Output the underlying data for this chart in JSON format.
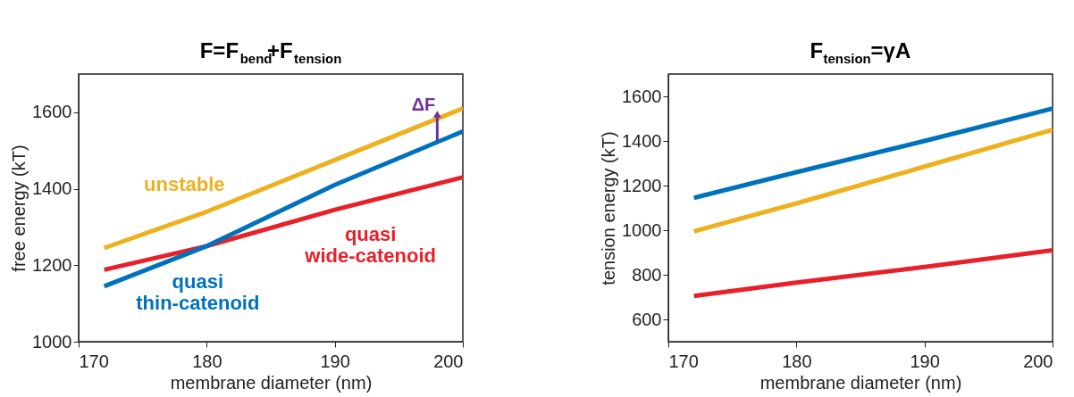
{
  "chart_data": [
    {
      "type": "line",
      "title": "F=F$_{bend}$+F$_{tension}$",
      "xlabel": "membrane diameter (nm)",
      "ylabel": "free energy (kT)",
      "xlim": [
        170,
        200
      ],
      "xticks": [
        170,
        180,
        190,
        200
      ],
      "ylim": [
        1000,
        1700
      ],
      "yticks": [
        1000,
        1200,
        1400,
        1600
      ],
      "grid": false,
      "legend": false,
      "x": [
        172,
        180,
        190,
        200
      ],
      "series": [
        {
          "name": "unstable",
          "color": "#edb120",
          "values": [
            1245,
            1340,
            1475,
            1610
          ]
        },
        {
          "name": "quasi wide-catenoid",
          "color": "#e8202a",
          "values": [
            1188,
            1250,
            1345,
            1430
          ]
        },
        {
          "name": "quasi thin-catenoid",
          "color": "#0072bd",
          "values": [
            1145,
            1250,
            1410,
            1550
          ]
        }
      ],
      "annotations": [
        {
          "text": "ΔF",
          "x": 198,
          "y": 1595
        }
      ]
    },
    {
      "type": "line",
      "title": "F$_{tension}$=γA",
      "xlabel": "membrane diameter (nm)",
      "ylabel": "tension energy (kT)",
      "xlim": [
        170,
        200
      ],
      "xticks": [
        170,
        180,
        190,
        200
      ],
      "ylim": [
        500,
        1700
      ],
      "yticks": [
        600,
        800,
        1000,
        1200,
        1400,
        1600
      ],
      "grid": false,
      "legend": false,
      "x": [
        172,
        180,
        190,
        200
      ],
      "series": [
        {
          "color": "#0072bd",
          "values": [
            1145,
            1260,
            1400,
            1545
          ]
        },
        {
          "color": "#edb120",
          "values": [
            995,
            1120,
            1285,
            1450
          ]
        },
        {
          "color": "#e8202a",
          "values": [
            705,
            765,
            835,
            910
          ]
        }
      ]
    }
  ]
}
